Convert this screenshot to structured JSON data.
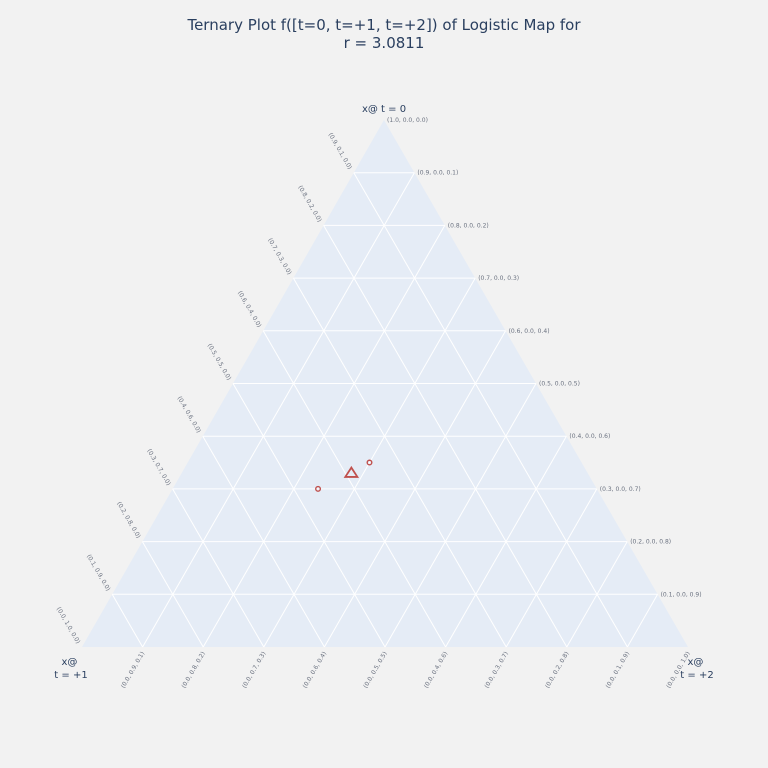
{
  "chart_data": {
    "type": "scatter",
    "subtype": "ternary",
    "title_lines": [
      "Ternary Plot f([t=0, t=+1, t=+2]) of Logistic Map for",
      "r = 3.0811"
    ],
    "axes": {
      "a": {
        "title": "x@ t = 0"
      },
      "b": {
        "title_lines": [
          "x@",
          "t = +1"
        ]
      },
      "c": {
        "title_lines": [
          "x@",
          "t = +2"
        ]
      }
    },
    "grid": true,
    "colors": {
      "background": "#f2f2f2",
      "plot_bg": "#e5ecf6",
      "grid": "#ffffff",
      "marker": "#c0504d"
    },
    "tick_labels_right": [
      "(1.0, 0.0, 0.0)",
      "(0.9, 0.0, 0.1)",
      "(0.8, 0.0, 0.2)",
      "(0.7, 0.0, 0.3)",
      "(0.6, 0.0, 0.4)",
      "(0.5, 0.0, 0.5)",
      "(0.4, 0.0, 0.6)",
      "(0.3, 0.0, 0.7)",
      "(0.2, 0.0, 0.8)",
      "(0.1, 0.0, 0.9)"
    ],
    "tick_labels_left": [
      "(0.9, 0.1, 0.0)",
      "(0.8, 0.2, 0.0)",
      "(0.7, 0.3, 0.0)",
      "(0.6, 0.4, 0.0)",
      "(0.5, 0.5, 0.0)",
      "(0.4, 0.6, 0.0)",
      "(0.3, 0.7, 0.0)",
      "(0.2, 0.8, 0.0)",
      "(0.1, 0.9, 0.0)",
      "(0.0, 1.0, 0.0)"
    ],
    "tick_labels_bottom": [
      "(0.0, 0.9, 0.1)",
      "(0.0, 0.8, 0.2)",
      "(0.0, 0.7, 0.3)",
      "(0.0, 0.6, 0.4)",
      "(0.0, 0.5, 0.5)",
      "(0.0, 0.4, 0.6)",
      "(0.0, 0.3, 0.7)",
      "(0.0, 0.2, 0.8)",
      "(0.0, 0.1, 0.9)",
      "(0.0, 0.0, 1.0)"
    ],
    "points": [
      {
        "marker": "circle-open",
        "a": 0.35,
        "b": 0.35,
        "c": 0.3
      },
      {
        "marker": "circle-open",
        "a": 0.3,
        "b": 0.46,
        "c": 0.24
      },
      {
        "marker": "triangle-open",
        "a": 0.33,
        "b": 0.39,
        "c": 0.28
      }
    ]
  }
}
